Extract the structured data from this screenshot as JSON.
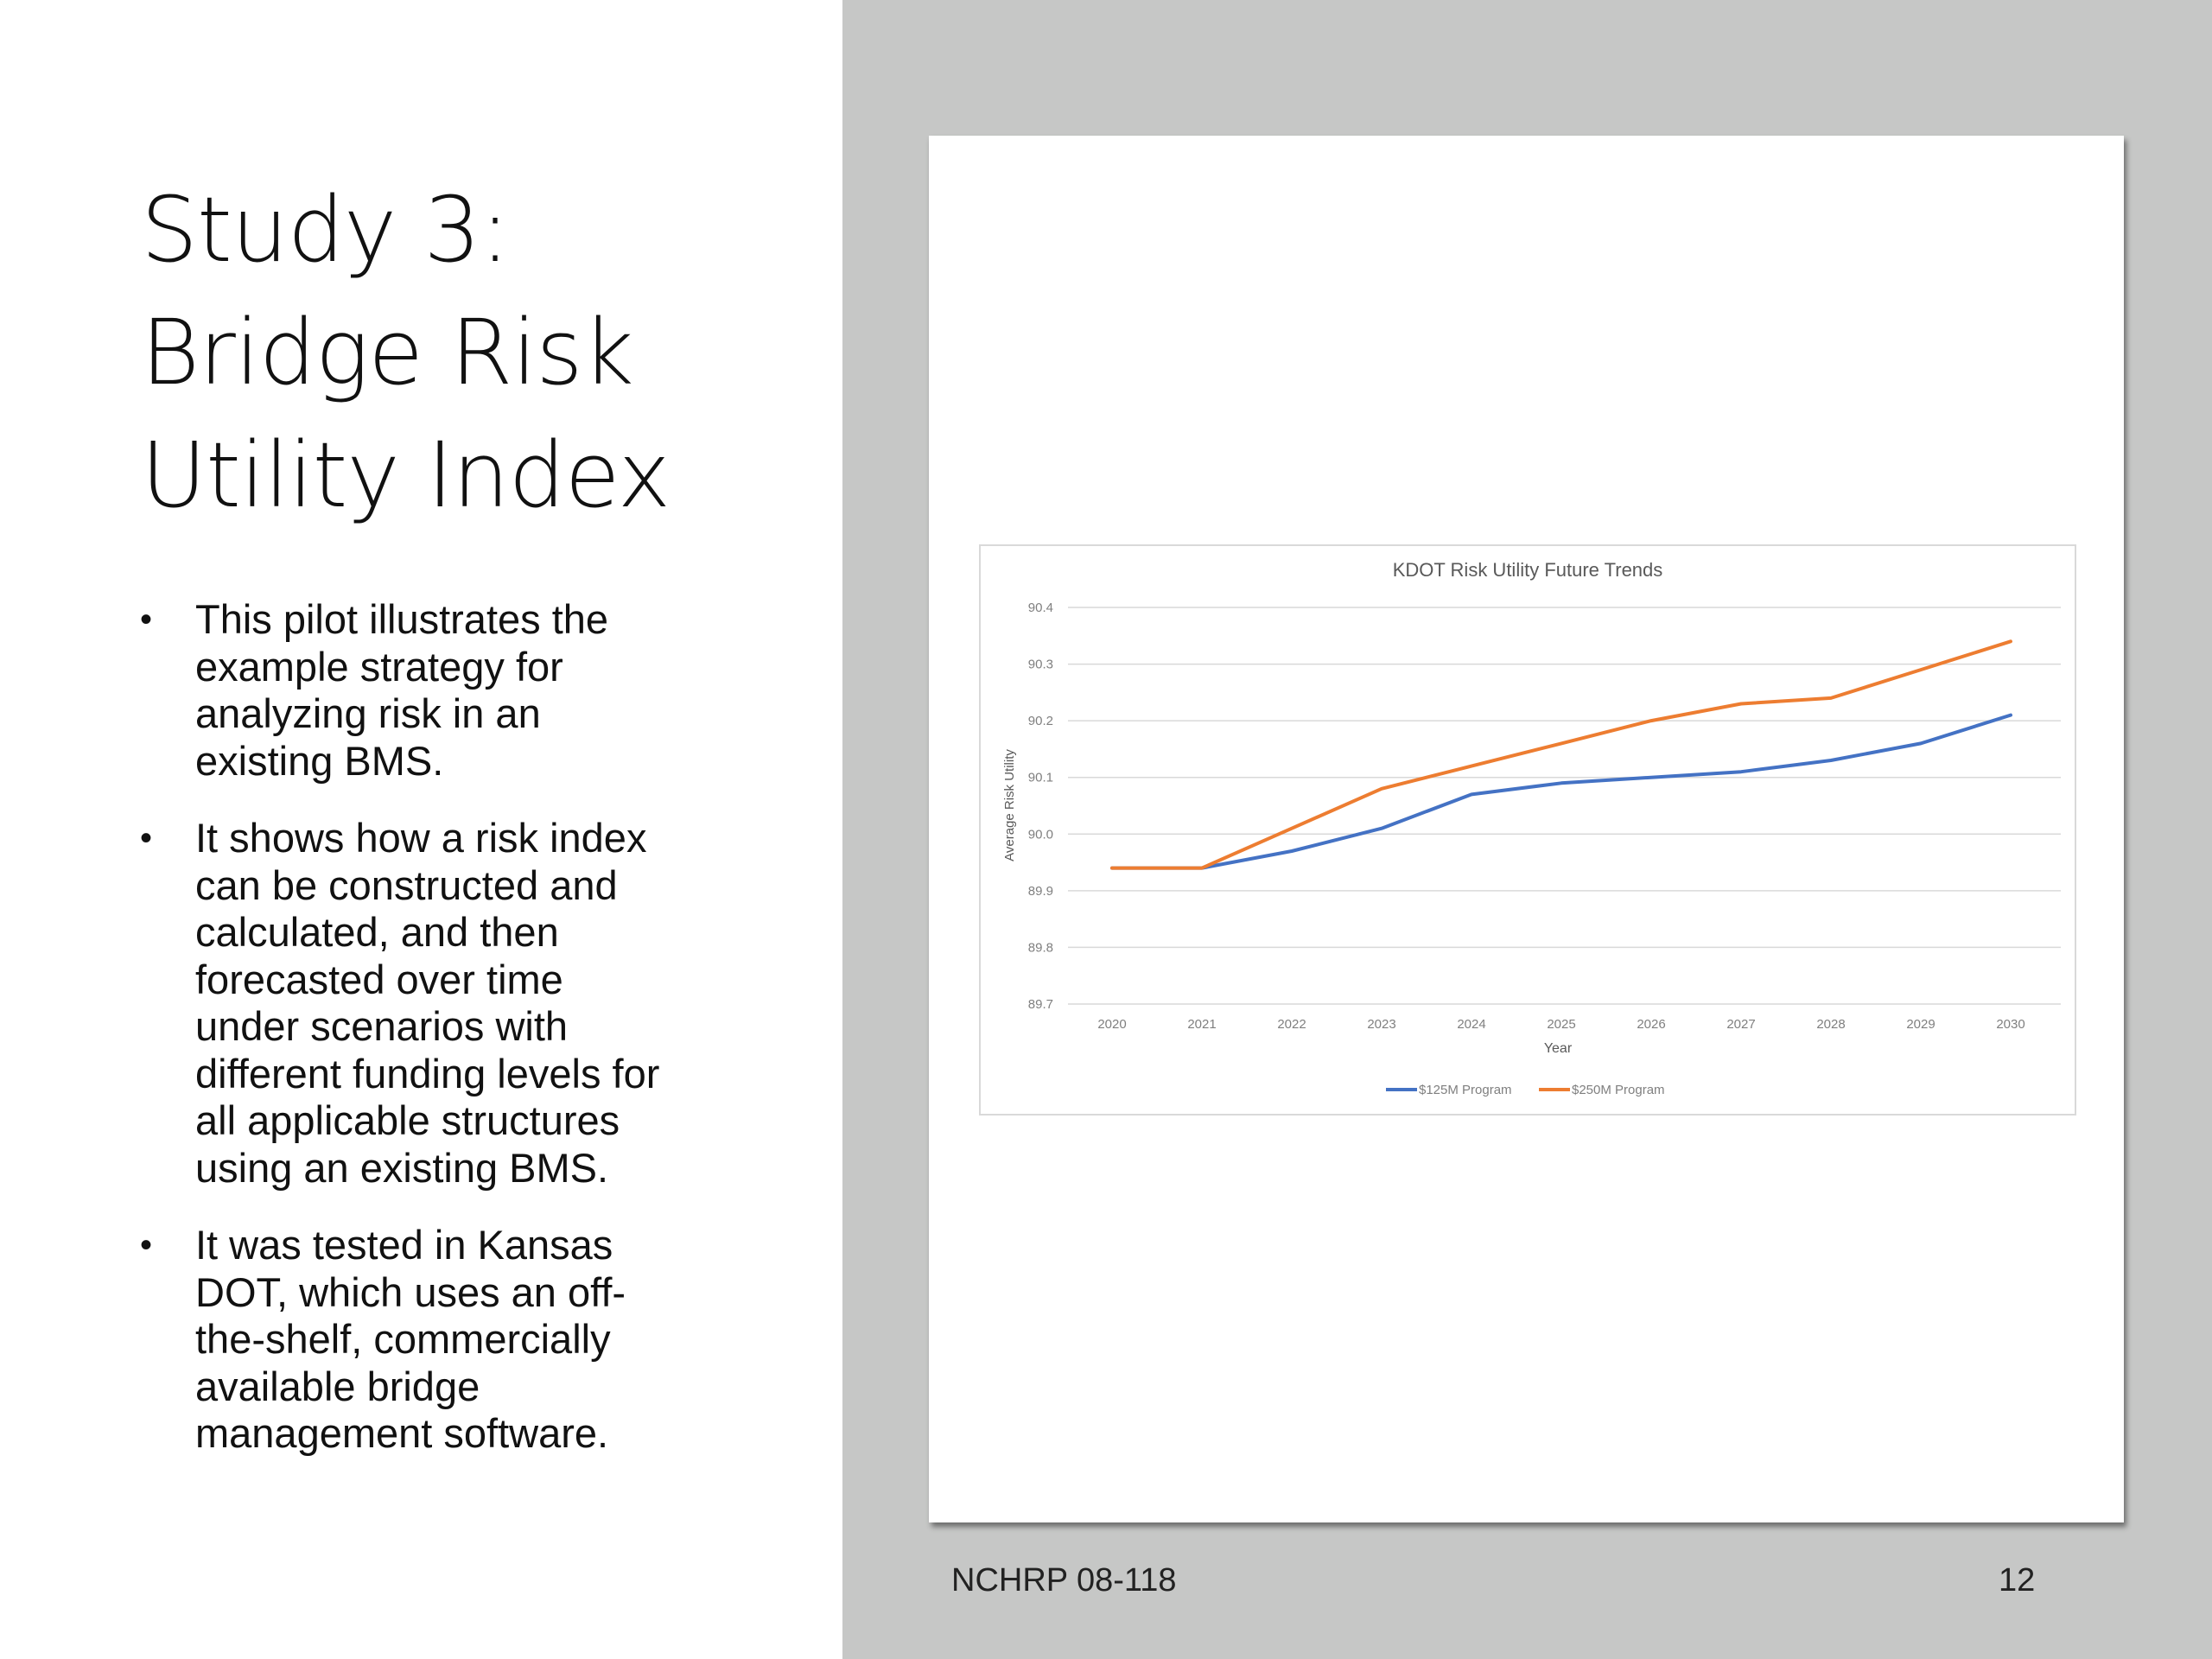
{
  "slide": {
    "title_lines": [
      "Study 3:",
      "Bridge Risk",
      "Utility Index"
    ],
    "bullet_glyph": "•",
    "bullets": [
      {
        "lines": [
          "This pilot illustrates the",
          "example strategy for",
          "analyzing risk in an",
          "existing BMS."
        ]
      },
      {
        "lines": [
          "It shows how a risk index",
          "can be constructed and",
          "calculated, and then",
          "forecasted over time",
          "under scenarios with",
          "different funding levels for",
          "all applicable structures",
          "using an existing BMS."
        ]
      },
      {
        "lines": [
          "It was tested in Kansas",
          "DOT, which uses an off-",
          "the-shelf, commercially",
          "available bridge",
          "management software."
        ]
      }
    ],
    "footer_left": "NCHRP 08-118",
    "footer_right": "12"
  },
  "chart_data": {
    "type": "line",
    "title": "KDOT Risk Utility Future Trends",
    "xlabel": "Year",
    "ylabel": "Average Risk Utility",
    "x": [
      "2020",
      "2021",
      "2022",
      "2023",
      "2024",
      "2025",
      "2026",
      "2027",
      "2028",
      "2029",
      "2030"
    ],
    "y_ticks": [
      "90.4",
      "90.3",
      "90.2",
      "90.1",
      "90.0",
      "89.9",
      "89.8",
      "89.7"
    ],
    "ylim": [
      89.7,
      90.4
    ],
    "grid": true,
    "legend_position": "bottom",
    "series": [
      {
        "name": "$125M Program",
        "color": "#4472c4",
        "values": [
          89.94,
          89.94,
          89.97,
          90.01,
          90.07,
          90.09,
          90.1,
          90.11,
          90.13,
          90.16,
          90.21
        ]
      },
      {
        "name": "$250M Program",
        "color": "#ed7d31",
        "values": [
          89.94,
          89.94,
          90.01,
          90.08,
          90.12,
          90.16,
          90.2,
          90.23,
          90.24,
          90.29,
          90.34
        ]
      }
    ]
  }
}
